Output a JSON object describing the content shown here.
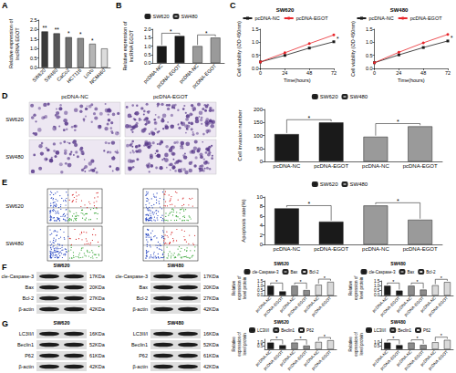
{
  "panel_labels": [
    "A",
    "B",
    "C",
    "D",
    "E",
    "F",
    "G"
  ],
  "image_panels": [
    {
      "columns": [
        "pcDNA-NC",
        "pcDNA-EGOT"
      ],
      "rows": [
        "SW620",
        "SW480"
      ]
    },
    {
      "rows": [
        "SW620",
        "SW480"
      ]
    }
  ],
  "blots": [
    {
      "title": "SW620",
      "rows": [
        {
          "protein": "cle-Caspase-3",
          "size": "17KDa"
        },
        {
          "protein": "Bax",
          "size": "20KDa"
        },
        {
          "protein": "Bcl-2",
          "size": "27KDa"
        },
        {
          "protein": "β-actin",
          "size": "42KDa"
        }
      ]
    },
    {
      "title": "SW480",
      "rows": [
        {
          "protein": "cle-Caspase-3",
          "size": "17KDa"
        },
        {
          "protein": "Bax",
          "size": "20KDa"
        },
        {
          "protein": "Bcl-2",
          "size": "27KDa"
        },
        {
          "protein": "β-actin",
          "size": "42KDa"
        }
      ]
    },
    {
      "title": "SW620",
      "rows": [
        {
          "protein": "LC3II/I",
          "size": "16KDa"
        },
        {
          "protein": "Beclin1",
          "size": "52KDa"
        },
        {
          "protein": "P62",
          "size": "61KDa"
        },
        {
          "protein": "β-actin",
          "size": "42KDa"
        }
      ]
    },
    {
      "title": "SW480",
      "rows": [
        {
          "protein": "LC3II/I",
          "size": "16KDa"
        },
        {
          "protein": "Beclin1",
          "size": "52KDa"
        },
        {
          "protein": "P62",
          "size": "61KDa"
        },
        {
          "protein": "β-actin",
          "size": "42KDa"
        }
      ]
    }
  ],
  "chart_data": [
    {
      "type": "bar",
      "ylabel": "Relative expression of lncRNA EGOT",
      "categories": [
        "SW620",
        "SW480",
        "CaCo2",
        "HCT116",
        "LoVo",
        "NCM460"
      ],
      "values": [
        1.9,
        1.8,
        1.6,
        1.55,
        1.25,
        1.0
      ],
      "colors": [
        "#3a3a3a",
        "#555555",
        "#6e6e6e",
        "#8a8a8a",
        "#b5b5b5",
        "#dcdcdc"
      ],
      "ylim": [
        0,
        2.5
      ],
      "yticks": [
        {
          "value": 0,
          "label": "0.0"
        },
        0.5,
        {
          "value": 1,
          "label": "1.0"
        },
        1.5,
        {
          "value": 2,
          "label": "2.0"
        },
        2.5
      ],
      "grid": false,
      "significance": [
        "**",
        "**",
        "*",
        "*",
        "*",
        null
      ]
    },
    {
      "type": "bar",
      "ylabel": "Relative expression of lncRNA EGOT",
      "categories": [
        "pcDNA-NC",
        "pcDNA-EGOT",
        "pcDNA-NC",
        "pcDNA-EGOT"
      ],
      "series": [
        {
          "name": "SW620",
          "color": "#1a1a1a",
          "values": [
            1.0,
            1.6,
            null,
            null
          ]
        },
        {
          "name": "SW480",
          "color": "#9a9a9a",
          "values": [
            null,
            null,
            1.0,
            1.5
          ]
        }
      ],
      "ylim": [
        0,
        2
      ],
      "yticks": [
        {
          "value": 0,
          "label": "0.0"
        },
        0.5,
        {
          "value": 1,
          "label": "1.0"
        },
        1.5,
        {
          "value": 2,
          "label": "2.0"
        }
      ],
      "legend": "top",
      "grid": false,
      "significance": [
        null,
        "*",
        null,
        "*"
      ]
    },
    {
      "type": "line",
      "title": "SW620",
      "xlabel": "Time(hours)",
      "ylabel": "Cell viability (OD 450nm)",
      "x": [
        0,
        24,
        48,
        72
      ],
      "xlim": [
        0,
        72
      ],
      "xticks": [
        0,
        24,
        48,
        72
      ],
      "ylim": [
        0,
        1.5
      ],
      "yticks": [
        {
          "value": 0,
          "label": "0.0"
        },
        0.5,
        {
          "value": 1,
          "label": "1.0"
        },
        1.5
      ],
      "series": [
        {
          "name": "pcDNA-NC",
          "color": "#1a1a1a",
          "marker": "square",
          "values": [
            0.25,
            0.5,
            0.78,
            1.02
          ]
        },
        {
          "name": "pcDNA-EGOT",
          "color": "#e8262b",
          "marker": "circle",
          "values": [
            0.25,
            0.6,
            0.95,
            1.28
          ]
        }
      ],
      "legend": "top",
      "grid": false,
      "significance": "*"
    },
    {
      "type": "line",
      "title": "SW480",
      "xlabel": "Time(hours)",
      "ylabel": "Cell viability (OD 450nm)",
      "x": [
        0,
        24,
        48,
        72
      ],
      "xlim": [
        0,
        72
      ],
      "xticks": [
        0,
        24,
        48,
        72
      ],
      "ylim": [
        0,
        1.5
      ],
      "yticks": [
        {
          "value": 0,
          "label": "0.0"
        },
        0.5,
        {
          "value": 1,
          "label": "1.0"
        },
        1.5
      ],
      "series": [
        {
          "name": "pcDNA-NC",
          "color": "#1a1a1a",
          "marker": "square",
          "values": [
            0.22,
            0.52,
            0.8,
            1.05
          ]
        },
        {
          "name": "pcDNA-EGOT",
          "color": "#e8262b",
          "marker": "circle",
          "values": [
            0.22,
            0.62,
            0.98,
            1.3
          ]
        }
      ],
      "legend": "top",
      "grid": false,
      "significance": "*"
    },
    {
      "type": "bar",
      "ylabel": "Cell invasion number",
      "categories": [
        "pcDNA-NC",
        "pcDNA-EGOT",
        "pcDNA-NC",
        "pcDNA-EGOT"
      ],
      "series": [
        {
          "name": "SW620",
          "color": "#1a1a1a",
          "values": [
            105,
            150,
            null,
            null
          ]
        },
        {
          "name": "SW480",
          "color": "#9a9a9a",
          "values": [
            null,
            null,
            95,
            135
          ]
        }
      ],
      "ylim": [
        0,
        200
      ],
      "yticks": [
        0,
        50,
        100,
        150,
        200
      ],
      "legend": "top",
      "grid": false,
      "significance": [
        null,
        "*",
        null,
        "*"
      ]
    },
    {
      "type": "bar",
      "ylabel": "Apoptosis rate(%)",
      "categories": [
        "pcDNA-NC",
        "pcDNA-EGOT",
        "pcDNA-NC",
        "pcDNA-EGOT"
      ],
      "series": [
        {
          "name": "SW620",
          "color": "#1a1a1a",
          "values": [
            7.6,
            4.8,
            null,
            null
          ]
        },
        {
          "name": "SW480",
          "color": "#9a9a9a",
          "values": [
            null,
            null,
            8.2,
            5.2
          ]
        }
      ],
      "ylim": [
        0,
        10
      ],
      "yticks": [
        0,
        2,
        4,
        6,
        8,
        10
      ],
      "legend": "top",
      "grid": false,
      "significance": [
        null,
        "*",
        null,
        "*"
      ]
    },
    {
      "type": "bar",
      "title": "SW620",
      "ylabel": "Relative expression of level protein",
      "categories": [
        "pcDNA-NC",
        "pcDNA-EGOT",
        "pcDNA-NC",
        "pcDNA-EGOT",
        "pcDNA-NC",
        "pcDNA-EGOT"
      ],
      "series": [
        {
          "name": "cle-Caspase-3",
          "color": "#1a1a1a",
          "values": [
            1.0,
            0.42,
            null,
            null,
            null,
            null
          ]
        },
        {
          "name": "Bax",
          "color": "#8c8c8c",
          "values": [
            null,
            null,
            1.0,
            0.55,
            null,
            null
          ]
        },
        {
          "name": "Bcl-2",
          "color": "#d9d9d9",
          "values": [
            null,
            null,
            null,
            null,
            1.1,
            1.4
          ]
        }
      ],
      "ylim": [
        0,
        1.5
      ],
      "yticks": [
        {
          "value": 0,
          "label": "0.0"
        },
        0.5,
        {
          "value": 1,
          "label": "1.0"
        },
        1.5
      ],
      "legend": "top",
      "grid": false,
      "significance": [
        null,
        "*",
        null,
        "*",
        null,
        "*"
      ]
    },
    {
      "type": "bar",
      "title": "SW480",
      "ylabel": "Relative expression of level protein",
      "categories": [
        "pcDNA-NC",
        "pcDNA-EGOT",
        "pcDNA-NC",
        "pcDNA-EGOT",
        "pcDNA-NC",
        "pcDNA-EGOT"
      ],
      "series": [
        {
          "name": "cle-Caspase-3",
          "color": "#1a1a1a",
          "values": [
            1.0,
            0.5,
            null,
            null,
            null,
            null
          ]
        },
        {
          "name": "Bax",
          "color": "#8c8c8c",
          "values": [
            null,
            null,
            1.0,
            0.6,
            null,
            null
          ]
        },
        {
          "name": "Bcl-2",
          "color": "#d9d9d9",
          "values": [
            null,
            null,
            null,
            null,
            1.05,
            1.38
          ]
        }
      ],
      "ylim": [
        0,
        1.5
      ],
      "yticks": [
        {
          "value": 0,
          "label": "0.0"
        },
        0.5,
        {
          "value": 1,
          "label": "1.0"
        },
        1.5
      ],
      "legend": "top",
      "grid": false,
      "significance": [
        null,
        "*",
        null,
        "*",
        null,
        "*"
      ]
    },
    {
      "type": "bar",
      "title": "SW620",
      "ylabel": "Relative expression of level protein",
      "categories": [
        "pcDNA-NC",
        "pcDNA-EGOT",
        "pcDNA-NC",
        "pcDNA-EGOT",
        "pcDNA-NC",
        "pcDNA-EGOT"
      ],
      "series": [
        {
          "name": "LC3II/I",
          "color": "#1a1a1a",
          "values": [
            1.0,
            0.6,
            null,
            null,
            null,
            null
          ]
        },
        {
          "name": "Beclin1",
          "color": "#8c8c8c",
          "values": [
            null,
            null,
            1.0,
            0.55,
            null,
            null
          ]
        },
        {
          "name": "P62",
          "color": "#d9d9d9",
          "values": [
            null,
            null,
            null,
            null,
            1.1,
            1.35
          ]
        }
      ],
      "ylim": [
        0,
        1.5
      ],
      "yticks": [
        {
          "value": 0,
          "label": "0.0"
        },
        0.5,
        {
          "value": 1,
          "label": "1.0"
        },
        1.5
      ],
      "legend": "top",
      "grid": false,
      "significance": [
        null,
        "*",
        null,
        "*",
        null,
        "*"
      ]
    },
    {
      "type": "bar",
      "title": "SW480",
      "ylabel": "Relative expression of level protein",
      "categories": [
        "pcDNA-NC",
        "pcDNA-EGOT",
        "pcDNA-NC",
        "pcDNA-EGOT",
        "pcDNA-NC",
        "pcDNA-EGOT"
      ],
      "series": [
        {
          "name": "LC3II/I",
          "color": "#1a1a1a",
          "values": [
            1.0,
            0.62,
            null,
            null,
            null,
            null
          ]
        },
        {
          "name": "Beclin1",
          "color": "#8c8c8c",
          "values": [
            null,
            null,
            1.0,
            0.65,
            null,
            null
          ]
        },
        {
          "name": "P62",
          "color": "#d9d9d9",
          "values": [
            null,
            null,
            null,
            null,
            1.05,
            1.4
          ]
        }
      ],
      "ylim": [
        0,
        1.5
      ],
      "yticks": [
        {
          "value": 0,
          "label": "0.0"
        },
        0.5,
        {
          "value": 1,
          "label": "1.0"
        },
        1.5
      ],
      "legend": "top",
      "grid": false,
      "significance": [
        null,
        "*",
        null,
        "*",
        null,
        "*"
      ]
    }
  ]
}
